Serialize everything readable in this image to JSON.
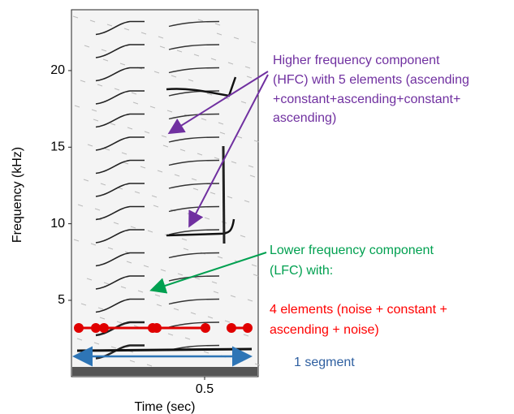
{
  "axes": {
    "y_label": "Frequency (kHz)",
    "x_label": "Time (sec)",
    "yticks": [
      5,
      10,
      15,
      20
    ],
    "xticks": [
      0.5
    ]
  },
  "annotations": {
    "hfc": [
      "Higher frequency component",
      "(HFC) with 5 elements (ascending",
      "+constant+ascending+constant+",
      "ascending)"
    ],
    "lfc": [
      "Lower frequency component",
      "(LFC) with:"
    ],
    "elements": [
      "4 elements (noise + constant +",
      "ascending + noise)"
    ],
    "segment": "1 segment"
  }
}
